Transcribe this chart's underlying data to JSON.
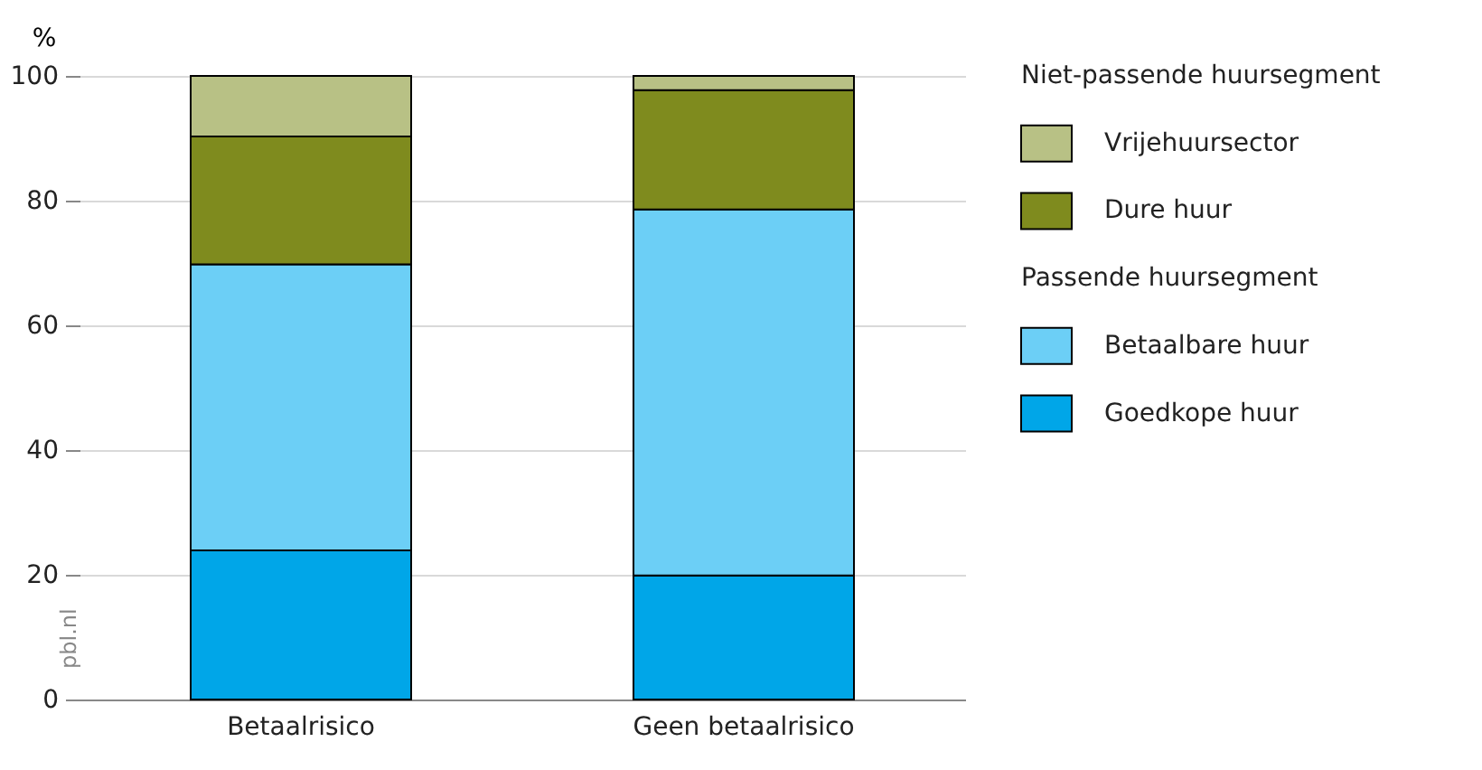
{
  "chart_data": {
    "type": "bar",
    "stacked": true,
    "ylabel": "%",
    "categories": [
      "Betaalrisico",
      "Geen betaalrisico"
    ],
    "series": [
      {
        "name": "Goedkope huur",
        "color": "#00a6e8",
        "values": [
          23.9,
          19.9
        ]
      },
      {
        "name": "Betaalbare huur",
        "color": "#6ccff6",
        "values": [
          45.9,
          58.7
        ]
      },
      {
        "name": "Dure huur",
        "color": "#7f8b1e",
        "values": [
          20.5,
          19.1
        ]
      },
      {
        "name": "Vrijehuursector",
        "color": "#b8c185",
        "values": [
          9.7,
          2.3
        ]
      }
    ],
    "legend_title": [
      "Niet-passende huursegment",
      "Passende huursegment"
    ],
    "legend": "right",
    "ylim": [
      0,
      100
    ],
    "yticks": [
      0,
      20,
      40,
      60,
      80,
      100
    ],
    "grid": "y",
    "annotations": [
      "pbl.nl"
    ]
  }
}
